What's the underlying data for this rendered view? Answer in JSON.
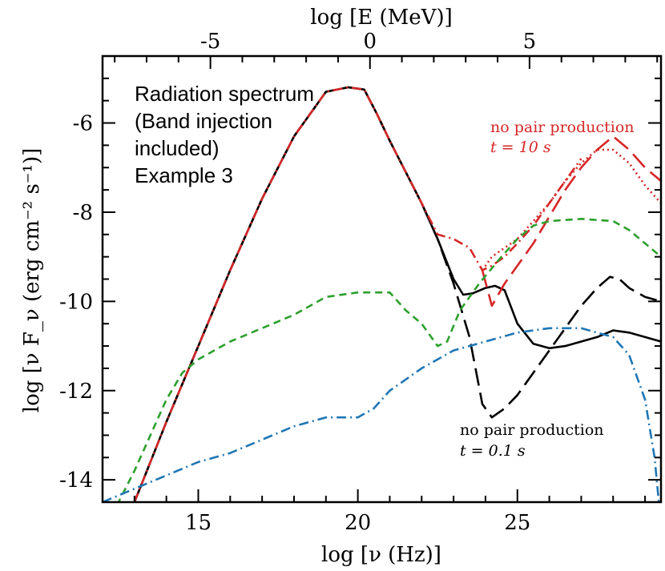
{
  "chart_data": {
    "type": "line",
    "title": "",
    "xlabel": "log [ν (Hz)]",
    "ylabel": "log [ν F_ν (erg cm⁻² s⁻¹)]",
    "top_xlabel": "log [E (MeV)]",
    "xlim": [
      12,
      29.5
    ],
    "ylim": [
      -14.5,
      -4.5
    ],
    "x_ticks": [
      "15",
      "20",
      "25"
    ],
    "x_tick_values": [
      15,
      20,
      25
    ],
    "y_ticks": [
      "-6",
      "-8",
      "-10",
      "-12",
      "-14"
    ],
    "y_tick_values": [
      -6,
      -8,
      -10,
      -12,
      -14
    ],
    "top_ticks": [
      "-5",
      "0",
      "5"
    ],
    "top_tick_values": [
      -5,
      0,
      5
    ],
    "top_axis_offset": 20.38,
    "grid": false,
    "legend_text": [
      "Radiation spectrum",
      "(Band injection",
      "included)",
      "Example 3"
    ],
    "annotations": {
      "red_lines": [
        "no pair production",
        "t = 10 s"
      ],
      "black_lines": [
        "no pair production",
        "t = 0.1 s"
      ]
    },
    "series": [
      {
        "style": "solid",
        "color": "#000000",
        "x": [
          13,
          14,
          15,
          16,
          17,
          18,
          19,
          19.7,
          20.2,
          20.6,
          21,
          21.5,
          22,
          22.5,
          23,
          23.3,
          23.6,
          24,
          24.3,
          24.6,
          25,
          25.5,
          26,
          26.5,
          27,
          27.5,
          28,
          28.5,
          29,
          29.5
        ],
        "y": [
          -14.5,
          -12.7,
          -11.0,
          -9.3,
          -7.7,
          -6.3,
          -5.3,
          -5.2,
          -5.25,
          -5.8,
          -6.4,
          -7.1,
          -7.8,
          -8.6,
          -9.5,
          -9.85,
          -9.82,
          -9.7,
          -9.65,
          -9.75,
          -10.5,
          -10.95,
          -11.05,
          -11.0,
          -10.9,
          -10.8,
          -10.65,
          -10.7,
          -10.8,
          -10.9
        ]
      },
      {
        "style": "longdash",
        "color": "#000000",
        "x": [
          13,
          14,
          15,
          16,
          17,
          18,
          19,
          19.7,
          20.2,
          20.6,
          21,
          21.5,
          22,
          22.5,
          23,
          23.5,
          23.9,
          24.2,
          24.6,
          25,
          25.5,
          26,
          26.5,
          27,
          27.5,
          27.9,
          28.2,
          28.5,
          29,
          29.5
        ],
        "y": [
          -14.5,
          -12.7,
          -11.0,
          -9.3,
          -7.7,
          -6.3,
          -5.3,
          -5.2,
          -5.25,
          -5.8,
          -6.4,
          -7.1,
          -7.8,
          -8.6,
          -9.6,
          -10.8,
          -12.3,
          -12.6,
          -12.4,
          -12.1,
          -11.6,
          -11.1,
          -10.6,
          -10.1,
          -9.7,
          -9.45,
          -9.5,
          -9.7,
          -9.9,
          -10.0
        ]
      },
      {
        "style": "dashdot",
        "color": "#d62728",
        "x": [
          13,
          14,
          15,
          16,
          17,
          18,
          19,
          19.7,
          20.2,
          20.6,
          21,
          21.5,
          22,
          22.5,
          23,
          23.5,
          23.9,
          24.2,
          24.6,
          25,
          25.5,
          26,
          26.5,
          27
        ],
        "y": [
          -14.5,
          -12.7,
          -11.0,
          -9.3,
          -7.7,
          -6.3,
          -5.3,
          -5.2,
          -5.25,
          -5.8,
          -6.4,
          -7.1,
          -7.8,
          -8.5,
          -8.6,
          -8.8,
          -9.3,
          -9.2,
          -9.0,
          -8.7,
          -8.3,
          -7.8,
          -7.3,
          -6.8
        ]
      },
      {
        "style": "dotted",
        "color": "#d62728",
        "x": [
          23.9,
          24.2,
          24.6,
          25,
          25.5,
          26,
          26.5,
          27,
          27.5,
          28,
          28.5,
          29,
          29.5
        ],
        "y": [
          -9.3,
          -9.0,
          -8.8,
          -8.6,
          -8.2,
          -7.8,
          -7.3,
          -6.9,
          -6.6,
          -6.6,
          -6.9,
          -7.4,
          -7.8
        ]
      },
      {
        "style": "longdash",
        "color": "#d62728",
        "x": [
          23.9,
          24.2,
          24.6,
          25,
          25.5,
          26,
          26.5,
          27,
          27.5,
          28,
          28.5,
          29,
          29.5
        ],
        "y": [
          -9.3,
          -10.1,
          -9.6,
          -9.2,
          -8.7,
          -8.1,
          -7.5,
          -7.0,
          -6.6,
          -6.3,
          -6.6,
          -7.0,
          -7.3
        ]
      },
      {
        "style": "dashed",
        "color": "#2ca02c",
        "x": [
          12,
          12.5,
          13,
          13.5,
          14,
          14.5,
          15,
          15.5,
          16,
          17,
          18,
          19,
          20,
          21,
          21.5,
          22,
          22.5,
          22.8,
          23.2,
          23.8,
          24.5,
          25,
          25.5,
          26,
          27,
          28,
          28.5,
          29,
          29.5
        ],
        "y": [
          -15,
          -14.5,
          -13.8,
          -13.0,
          -12.2,
          -11.6,
          -11.3,
          -11.1,
          -10.9,
          -10.6,
          -10.3,
          -9.9,
          -9.8,
          -9.8,
          -10.2,
          -10.5,
          -11.0,
          -10.9,
          -10.2,
          -9.6,
          -9.0,
          -8.6,
          -8.3,
          -8.2,
          -8.15,
          -8.2,
          -8.4,
          -8.7,
          -9.0
        ]
      },
      {
        "style": "dashdot",
        "color": "#1f77b4",
        "x": [
          12,
          13,
          14,
          15,
          16,
          17,
          18,
          19,
          20,
          20.5,
          21,
          22,
          23,
          24,
          25,
          26,
          27,
          28,
          28.5,
          29,
          29.3,
          29.5
        ],
        "y": [
          -14.5,
          -14.2,
          -13.9,
          -13.6,
          -13.4,
          -13.1,
          -12.8,
          -12.6,
          -12.6,
          -12.4,
          -12.0,
          -11.5,
          -11.1,
          -10.9,
          -10.7,
          -10.6,
          -10.6,
          -10.8,
          -11.2,
          -12.2,
          -13.5,
          -15
        ]
      }
    ]
  }
}
